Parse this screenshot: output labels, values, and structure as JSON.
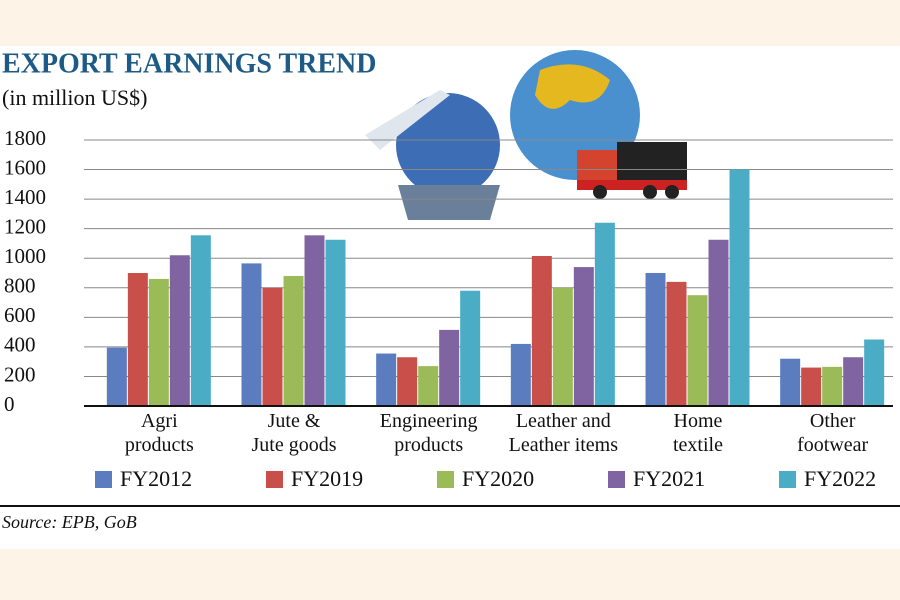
{
  "chart_data": {
    "type": "bar",
    "title": "EXPORT EARNINGS TREND",
    "subtitle": "(in million US$)",
    "categories": [
      [
        "Agri",
        "products"
      ],
      [
        "Jute &",
        "Jute goods"
      ],
      [
        "Engineering",
        "products"
      ],
      [
        "Leather and",
        "Leather items"
      ],
      [
        "Home",
        "textile"
      ],
      [
        "Other",
        "footwear"
      ]
    ],
    "series": [
      {
        "name": "FY2012",
        "color": "#5b7dc0",
        "values": [
          395,
          965,
          355,
          420,
          900,
          320
        ]
      },
      {
        "name": "FY2019",
        "color": "#c9504a",
        "values": [
          900,
          800,
          330,
          1015,
          840,
          260
        ]
      },
      {
        "name": "FY2020",
        "color": "#9bbb59",
        "values": [
          860,
          880,
          270,
          800,
          750,
          265
        ]
      },
      {
        "name": "FY2021",
        "color": "#8064a2",
        "values": [
          1020,
          1155,
          515,
          940,
          1125,
          330
        ]
      },
      {
        "name": "FY2022",
        "color": "#4bacc6",
        "values": [
          1155,
          1125,
          780,
          1240,
          1600,
          450
        ]
      }
    ],
    "ylim": [
      0,
      1800
    ],
    "yticks": [
      0,
      200,
      400,
      600,
      800,
      1000,
      1200,
      1400,
      1600,
      1800
    ],
    "grid": true,
    "source": "Source: EPB, GoB"
  }
}
